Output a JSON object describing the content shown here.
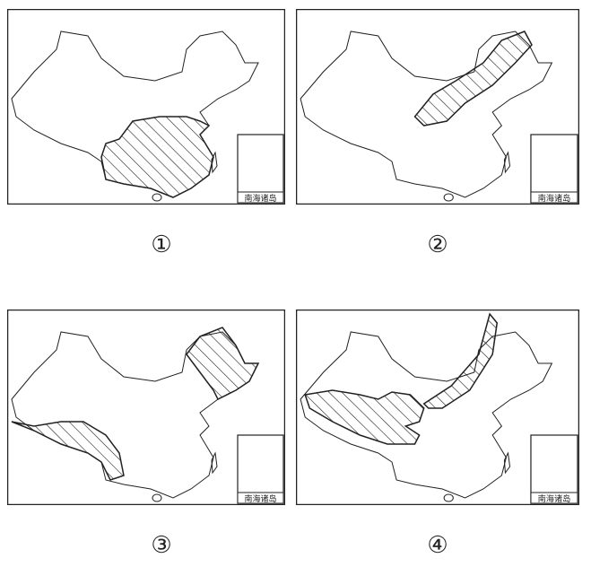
{
  "panels": [
    {
      "label": "①",
      "region": "south"
    },
    {
      "label": "②",
      "region": "northeast-band"
    },
    {
      "label": "③",
      "region": "northeast-and-southwest"
    },
    {
      "label": "④",
      "region": "northeast-band-and-west-central"
    }
  ],
  "inset_label": "南海诸岛",
  "colors": {
    "line": "#222222",
    "background": "#ffffff"
  }
}
